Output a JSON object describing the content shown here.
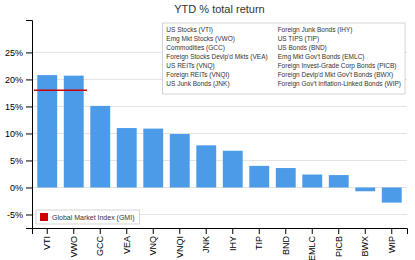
{
  "chart_data": {
    "type": "bar",
    "title": "YTD % total return",
    "categories": [
      "VTI",
      "VWO",
      "GCC",
      "VEA",
      "VNQ",
      "VNQI",
      "JNK",
      "IHY",
      "TIP",
      "BND",
      "EMLC",
      "PICB",
      "BWX",
      "WIP"
    ],
    "values": [
      20.8,
      20.7,
      15.1,
      11.0,
      10.9,
      9.9,
      7.8,
      6.8,
      4.0,
      3.6,
      2.4,
      2.3,
      -0.7,
      -2.8
    ],
    "color": "#4C9BE8",
    "ylim": [
      -7.5,
      31
    ],
    "yticks": [
      {
        "value": -5,
        "label": "-5%"
      },
      {
        "value": 0,
        "label": "0%"
      },
      {
        "value": 5,
        "label": "5%"
      },
      {
        "value": 10,
        "label": "10%"
      },
      {
        "value": 15,
        "label": "15%"
      },
      {
        "value": 20,
        "label": "20%"
      },
      {
        "value": 25,
        "label": "25%"
      }
    ],
    "grid": true,
    "legend": "lower left",
    "reference_line": {
      "label": "Global Market Index (GMI)",
      "value": 18.0,
      "color": "#CC0000",
      "from": "VTI",
      "to": "VWO"
    },
    "annotations": [
      "US Stocks (VTI)",
      "Emg Mkt Stocks (VWO)",
      "Commodities (GCC)",
      "Foreign Stocks Devlp'd Mkts (VEA)",
      "US REITs (VNQ)",
      "Foreign REITs (VNQI)",
      "US Junk Bonds (JNK)",
      "Foreign Junk Bonds (IHY)",
      "US TIPS (TIP)",
      "US Bonds (BND)",
      "Emg Mkt Gov't Bonds (EMLC)",
      "Foreign Invest-Grade Corp Bonds (PICB)",
      "Foreign Devlp'd Mkt Gov't Bonds (BWX)",
      "Foreign Gov't Inflation-Linked Bonds (WIP)"
    ]
  }
}
